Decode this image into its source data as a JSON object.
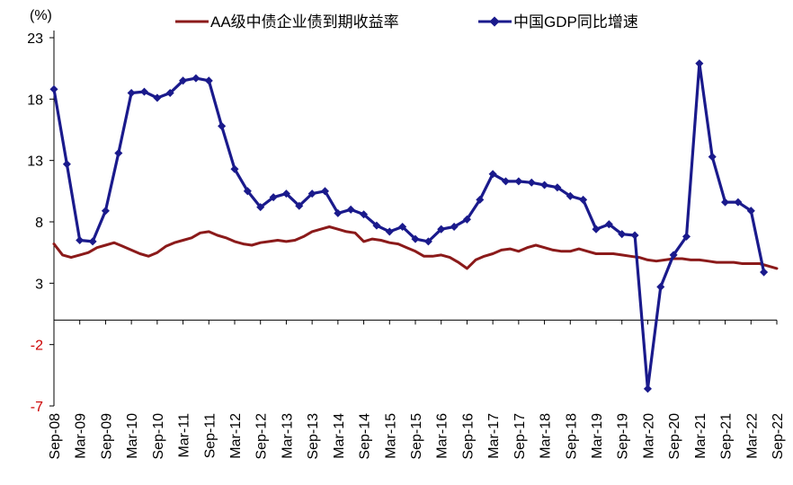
{
  "chart_data": {
    "type": "line",
    "unit_label": "(%)",
    "ylim": [
      -7,
      23
    ],
    "yticks": [
      23,
      18,
      13,
      8,
      3,
      -2,
      -7
    ],
    "x_tick_labels": [
      "Sep-08",
      "Mar-09",
      "Sep-09",
      "Mar-10",
      "Sep-10",
      "Mar-11",
      "Sep-11",
      "Mar-12",
      "Sep-12",
      "Mar-13",
      "Sep-13",
      "Mar-14",
      "Sep-14",
      "Mar-15",
      "Sep-15",
      "Mar-16",
      "Sep-16",
      "Mar-17",
      "Sep-17",
      "Mar-18",
      "Sep-18",
      "Mar-19",
      "Sep-19",
      "Mar-20",
      "Sep-20",
      "Mar-21",
      "Sep-21",
      "Mar-22",
      "Sep-22"
    ],
    "legend_position": "top",
    "grid": false,
    "series": [
      {
        "name": "AA级中债企业债到期收益率",
        "color": "#8b1a1a",
        "marker": "none",
        "x": [
          "2008-09",
          "2008-11",
          "2009-01",
          "2009-03",
          "2009-05",
          "2009-07",
          "2009-09",
          "2009-11",
          "2010-01",
          "2010-03",
          "2010-05",
          "2010-07",
          "2010-09",
          "2010-11",
          "2011-01",
          "2011-03",
          "2011-05",
          "2011-07",
          "2011-09",
          "2011-11",
          "2012-01",
          "2012-03",
          "2012-05",
          "2012-07",
          "2012-09",
          "2012-11",
          "2013-01",
          "2013-03",
          "2013-05",
          "2013-07",
          "2013-09",
          "2013-11",
          "2014-01",
          "2014-03",
          "2014-05",
          "2014-07",
          "2014-09",
          "2014-11",
          "2015-01",
          "2015-03",
          "2015-05",
          "2015-07",
          "2015-09",
          "2015-11",
          "2016-01",
          "2016-03",
          "2016-05",
          "2016-07",
          "2016-09",
          "2016-11",
          "2017-01",
          "2017-03",
          "2017-05",
          "2017-07",
          "2017-09",
          "2017-11",
          "2018-01",
          "2018-03",
          "2018-05",
          "2018-07",
          "2018-09",
          "2018-11",
          "2019-01",
          "2019-03",
          "2019-05",
          "2019-07",
          "2019-09",
          "2019-11",
          "2020-01",
          "2020-03",
          "2020-05",
          "2020-07",
          "2020-09",
          "2020-11",
          "2021-01",
          "2021-03",
          "2021-05",
          "2021-07",
          "2021-09",
          "2021-11",
          "2022-01",
          "2022-03",
          "2022-05",
          "2022-07",
          "2022-09"
        ],
        "values": [
          6.2,
          5.3,
          5.1,
          5.3,
          5.5,
          5.9,
          6.1,
          6.3,
          6.0,
          5.7,
          5.4,
          5.2,
          5.5,
          6.0,
          6.3,
          6.5,
          6.7,
          7.1,
          7.2,
          6.9,
          6.7,
          6.4,
          6.2,
          6.1,
          6.3,
          6.4,
          6.5,
          6.4,
          6.5,
          6.8,
          7.2,
          7.4,
          7.6,
          7.4,
          7.2,
          7.1,
          6.4,
          6.6,
          6.5,
          6.3,
          6.2,
          5.9,
          5.6,
          5.2,
          5.2,
          5.3,
          5.1,
          4.7,
          4.2,
          4.9,
          5.2,
          5.4,
          5.7,
          5.8,
          5.6,
          5.9,
          6.1,
          5.9,
          5.7,
          5.6,
          5.6,
          5.8,
          5.6,
          5.4,
          5.4,
          5.4,
          5.3,
          5.2,
          5.1,
          4.9,
          4.8,
          4.9,
          5.0,
          5.0,
          4.9,
          4.9,
          4.8,
          4.7,
          4.7,
          4.7,
          4.6,
          4.6,
          4.6,
          4.4,
          4.2
        ]
      },
      {
        "name": "中国GDP同比增速",
        "color": "#1a1a8c",
        "marker": "diamond",
        "x": [
          "2008-09",
          "2008-12",
          "2009-03",
          "2009-06",
          "2009-09",
          "2009-12",
          "2010-03",
          "2010-06",
          "2010-09",
          "2010-12",
          "2011-03",
          "2011-06",
          "2011-09",
          "2011-12",
          "2012-03",
          "2012-06",
          "2012-09",
          "2012-12",
          "2013-03",
          "2013-06",
          "2013-09",
          "2013-12",
          "2014-03",
          "2014-06",
          "2014-09",
          "2014-12",
          "2015-03",
          "2015-06",
          "2015-09",
          "2015-12",
          "2016-03",
          "2016-06",
          "2016-09",
          "2016-12",
          "2017-03",
          "2017-06",
          "2017-09",
          "2017-12",
          "2018-03",
          "2018-06",
          "2018-09",
          "2018-12",
          "2019-03",
          "2019-06",
          "2019-09",
          "2019-12",
          "2020-03",
          "2020-06",
          "2020-09",
          "2020-12",
          "2021-03",
          "2021-06",
          "2021-09",
          "2021-12",
          "2022-03",
          "2022-06"
        ],
        "values": [
          18.8,
          12.7,
          6.5,
          6.4,
          8.9,
          13.6,
          18.5,
          18.6,
          18.1,
          18.5,
          19.5,
          19.7,
          19.5,
          15.8,
          12.3,
          10.5,
          9.2,
          10.0,
          10.3,
          9.3,
          10.3,
          10.5,
          8.7,
          9.0,
          8.6,
          7.7,
          7.2,
          7.6,
          6.6,
          6.4,
          7.4,
          7.6,
          8.2,
          9.8,
          11.9,
          11.3,
          11.3,
          11.2,
          11.0,
          10.8,
          10.1,
          9.8,
          7.4,
          7.8,
          7.0,
          6.9,
          -5.6,
          2.7,
          5.3,
          6.8,
          20.9,
          13.3,
          9.6,
          9.6,
          8.9,
          3.9
        ]
      }
    ]
  }
}
